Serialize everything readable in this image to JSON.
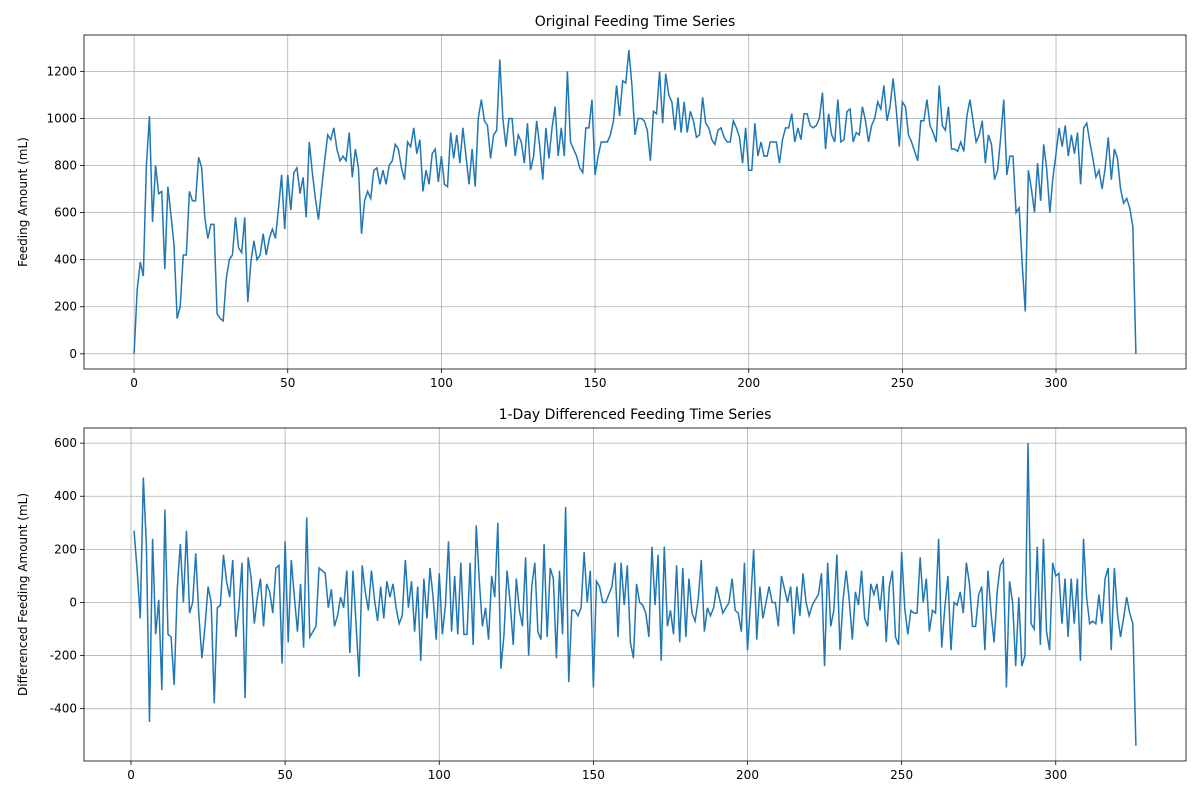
{
  "chart_data": [
    {
      "type": "line",
      "title": "Original Feeding Time Series",
      "ylabel": "Feeding Amount (mL)",
      "color": "#1f77b4",
      "grid": true,
      "xlim": [
        -16.3,
        342.3
      ],
      "ylim": [
        -64.5,
        1354.5
      ],
      "xticks": [
        0,
        50,
        100,
        150,
        200,
        250,
        300
      ],
      "yticks": [
        0,
        200,
        400,
        600,
        800,
        1000,
        1200
      ],
      "x": [
        0,
        1,
        2,
        3,
        4,
        5,
        6,
        7,
        8,
        9,
        10,
        11,
        12,
        13,
        14,
        15,
        16,
        17,
        18,
        19,
        20,
        21,
        22,
        23,
        24,
        25,
        26,
        27,
        28,
        29,
        30,
        31,
        32,
        33,
        34,
        35,
        36,
        37,
        38,
        39,
        40,
        41,
        42,
        43,
        44,
        45,
        46,
        47,
        48,
        49,
        50,
        51,
        52,
        53,
        54,
        55,
        56,
        57,
        58,
        59,
        60,
        61,
        62,
        63,
        64,
        65,
        66,
        67,
        68,
        69,
        70,
        71,
        72,
        73,
        74,
        75,
        76,
        77,
        78,
        79,
        80,
        81,
        82,
        83,
        84,
        85,
        86,
        87,
        88,
        89,
        90,
        91,
        92,
        93,
        94,
        95,
        96,
        97,
        98,
        99,
        100,
        101,
        102,
        103,
        104,
        105,
        106,
        107,
        108,
        109,
        110,
        111,
        112,
        113,
        114,
        115,
        116,
        117,
        118,
        119,
        120,
        121,
        122,
        123,
        124,
        125,
        126,
        127,
        128,
        129,
        130,
        131,
        132,
        133,
        134,
        135,
        136,
        137,
        138,
        139,
        140,
        141,
        142,
        143,
        144,
        145,
        146,
        147,
        148,
        149,
        150,
        151,
        152,
        153,
        154,
        155,
        156,
        157,
        158,
        159,
        160,
        161,
        162,
        163,
        164,
        165,
        166,
        167,
        168,
        169,
        170,
        171,
        172,
        173,
        174,
        175,
        176,
        177,
        178,
        179,
        180,
        181,
        182,
        183,
        184,
        185,
        186,
        187,
        188,
        189,
        190,
        191,
        192,
        193,
        194,
        195,
        196,
        197,
        198,
        199,
        200,
        201,
        202,
        203,
        204,
        205,
        206,
        207,
        208,
        209,
        210,
        211,
        212,
        213,
        214,
        215,
        216,
        217,
        218,
        219,
        220,
        221,
        222,
        223,
        224,
        225,
        226,
        227,
        228,
        229,
        230,
        231,
        232,
        233,
        234,
        235,
        236,
        237,
        238,
        239,
        240,
        241,
        242,
        243,
        244,
        245,
        246,
        247,
        248,
        249,
        250,
        251,
        252,
        253,
        254,
        255,
        256,
        257,
        258,
        259,
        260,
        261,
        262,
        263,
        264,
        265,
        266,
        267,
        268,
        269,
        270,
        271,
        272,
        273,
        274,
        275,
        276,
        277,
        278,
        279,
        280,
        281,
        282,
        283,
        284,
        285,
        286,
        287,
        288,
        289,
        290,
        291,
        292,
        293,
        294,
        295,
        296,
        297,
        298,
        299,
        300,
        301,
        302,
        303,
        304,
        305,
        306,
        307,
        308,
        309,
        310,
        311,
        312,
        313,
        314,
        315,
        316,
        317,
        318,
        319,
        320,
        321,
        322,
        323,
        324,
        325,
        326
      ],
      "values": [
        0,
        270,
        390,
        330,
        800,
        1010,
        560,
        800,
        680,
        690,
        360,
        710,
        590,
        460,
        150,
        200,
        420,
        420,
        690,
        650,
        650,
        835,
        790,
        580,
        490,
        550,
        550,
        170,
        150,
        140,
        320,
        400,
        420,
        580,
        450,
        430,
        580,
        220,
        390,
        480,
        400,
        420,
        510,
        420,
        490,
        530,
        490,
        620,
        760,
        530,
        760,
        610,
        770,
        790,
        680,
        750,
        580,
        900,
        770,
        660,
        570,
        700,
        820,
        930,
        910,
        960,
        870,
        820,
        840,
        820,
        940,
        750,
        870,
        790,
        510,
        650,
        690,
        660,
        780,
        790,
        720,
        780,
        720,
        800,
        820,
        890,
        870,
        790,
        740,
        900,
        880,
        960,
        850,
        910,
        690,
        780,
        720,
        850,
        870,
        730,
        840,
        720,
        710,
        940,
        830,
        930,
        810,
        960,
        840,
        720,
        870,
        710,
        1000,
        1080,
        990,
        970,
        830,
        930,
        950,
        1250,
        1000,
        880,
        1000,
        1000,
        840,
        930,
        900,
        810,
        980,
        780,
        840,
        990,
        880,
        740,
        960,
        830,
        960,
        1050,
        840,
        960,
        840,
        1200,
        900,
        870,
        840,
        790,
        770,
        960,
        960,
        1080,
        760,
        840,
        900,
        900,
        900,
        930,
        990,
        1140,
        1010,
        1160,
        1150,
        1290,
        1140,
        930,
        1000,
        1000,
        990,
        950,
        820,
        1030,
        1020,
        1200,
        980,
        1190,
        1100,
        1070,
        950,
        1090,
        940,
        1070,
        940,
        1030,
        990,
        920,
        930,
        1090,
        980,
        960,
        910,
        890,
        950,
        960,
        920,
        900,
        900,
        990,
        960,
        920,
        810,
        960,
        780,
        780,
        980,
        840,
        900,
        840,
        840,
        900,
        900,
        900,
        810,
        910,
        960,
        960,
        1020,
        900,
        960,
        910,
        1020,
        1020,
        970,
        960,
        970,
        1000,
        1110,
        870,
        1020,
        930,
        900,
        1080,
        900,
        910,
        1030,
        1040,
        900,
        940,
        930,
        1050,
        990,
        900,
        970,
        1000,
        1070,
        1040,
        1140,
        990,
        1050,
        1170,
        1040,
        880,
        1070,
        1050,
        930,
        900,
        860,
        820,
        990,
        990,
        1080,
        970,
        940,
        900,
        1140,
        970,
        950,
        1050,
        870,
        870,
        860,
        900,
        860,
        1010,
        1080,
        990,
        900,
        930,
        990,
        810,
        930,
        890,
        740,
        780,
        920,
        1080,
        760,
        840,
        840,
        600,
        620,
        380,
        180,
        780,
        700,
        600,
        810,
        650,
        890,
        780,
        600,
        750,
        850,
        960,
        880,
        970,
        840,
        930,
        850,
        940,
        720,
        960,
        980,
        900,
        830,
        750,
        780,
        700,
        790,
        920,
        740,
        870,
        830,
        700,
        640,
        660,
        620,
        540,
        0
      ]
    },
    {
      "type": "line",
      "title": "1-Day Differenced Feeding Time Series",
      "ylabel": "Differenced Feeding Amount (mL)",
      "color": "#1f77b4",
      "grid": true,
      "xlim": [
        -15.25,
        342.25
      ],
      "ylim": [
        -597,
        657
      ],
      "xticks": [
        0,
        50,
        100,
        150,
        200,
        250,
        300
      ],
      "yticks": [
        -400,
        -200,
        0,
        200,
        400,
        600
      ],
      "x": [
        1,
        2,
        3,
        4,
        5,
        6,
        7,
        8,
        9,
        10,
        11,
        12,
        13,
        14,
        15,
        16,
        17,
        18,
        19,
        20,
        21,
        22,
        23,
        24,
        25,
        26,
        27,
        28,
        29,
        30,
        31,
        32,
        33,
        34,
        35,
        36,
        37,
        38,
        39,
        40,
        41,
        42,
        43,
        44,
        45,
        46,
        47,
        48,
        49,
        50,
        51,
        52,
        53,
        54,
        55,
        56,
        57,
        58,
        59,
        60,
        61,
        62,
        63,
        64,
        65,
        66,
        67,
        68,
        69,
        70,
        71,
        72,
        73,
        74,
        75,
        76,
        77,
        78,
        79,
        80,
        81,
        82,
        83,
        84,
        85,
        86,
        87,
        88,
        89,
        90,
        91,
        92,
        93,
        94,
        95,
        96,
        97,
        98,
        99,
        100,
        101,
        102,
        103,
        104,
        105,
        106,
        107,
        108,
        109,
        110,
        111,
        112,
        113,
        114,
        115,
        116,
        117,
        118,
        119,
        120,
        121,
        122,
        123,
        124,
        125,
        126,
        127,
        128,
        129,
        130,
        131,
        132,
        133,
        134,
        135,
        136,
        137,
        138,
        139,
        140,
        141,
        142,
        143,
        144,
        145,
        146,
        147,
        148,
        149,
        150,
        151,
        152,
        153,
        154,
        155,
        156,
        157,
        158,
        159,
        160,
        161,
        162,
        163,
        164,
        165,
        166,
        167,
        168,
        169,
        170,
        171,
        172,
        173,
        174,
        175,
        176,
        177,
        178,
        179,
        180,
        181,
        182,
        183,
        184,
        185,
        186,
        187,
        188,
        189,
        190,
        191,
        192,
        193,
        194,
        195,
        196,
        197,
        198,
        199,
        200,
        201,
        202,
        203,
        204,
        205,
        206,
        207,
        208,
        209,
        210,
        211,
        212,
        213,
        214,
        215,
        216,
        217,
        218,
        219,
        220,
        221,
        222,
        223,
        224,
        225,
        226,
        227,
        228,
        229,
        230,
        231,
        232,
        233,
        234,
        235,
        236,
        237,
        238,
        239,
        240,
        241,
        242,
        243,
        244,
        245,
        246,
        247,
        248,
        249,
        250,
        251,
        252,
        253,
        254,
        255,
        256,
        257,
        258,
        259,
        260,
        261,
        262,
        263,
        264,
        265,
        266,
        267,
        268,
        269,
        270,
        271,
        272,
        273,
        274,
        275,
        276,
        277,
        278,
        279,
        280,
        281,
        282,
        283,
        284,
        285,
        286,
        287,
        288,
        289,
        290,
        291,
        292,
        293,
        294,
        295,
        296,
        297,
        298,
        299,
        300,
        301,
        302,
        303,
        304,
        305,
        306,
        307,
        308,
        309,
        310,
        311,
        312,
        313,
        314,
        315,
        316,
        317,
        318,
        319,
        320,
        321,
        322,
        323,
        324,
        325,
        326
      ],
      "values": [
        270,
        120,
        -60,
        470,
        210,
        -450,
        240,
        -120,
        10,
        -330,
        350,
        -120,
        -130,
        -310,
        50,
        220,
        0,
        270,
        -40,
        0,
        185,
        -45,
        -210,
        -90,
        60,
        0,
        -380,
        -20,
        -10,
        180,
        80,
        20,
        160,
        -130,
        -20,
        150,
        -360,
        170,
        90,
        -80,
        20,
        90,
        -90,
        70,
        40,
        -40,
        130,
        140,
        -230,
        230,
        -150,
        160,
        20,
        -110,
        70,
        -170,
        320,
        -130,
        -110,
        -90,
        130,
        120,
        110,
        -20,
        50,
        -90,
        -50,
        20,
        -20,
        120,
        -190,
        120,
        -80,
        -280,
        140,
        40,
        -30,
        120,
        10,
        -70,
        60,
        -60,
        80,
        20,
        70,
        -20,
        -80,
        -50,
        160,
        -20,
        80,
        -110,
        60,
        -220,
        90,
        -60,
        130,
        20,
        -140,
        110,
        -120,
        -10,
        230,
        -110,
        100,
        -120,
        150,
        -120,
        -120,
        150,
        -160,
        290,
        80,
        -90,
        -20,
        -140,
        100,
        20,
        300,
        -250,
        -120,
        120,
        0,
        -160,
        90,
        -30,
        -90,
        170,
        -200,
        60,
        150,
        -110,
        -140,
        220,
        -130,
        130,
        90,
        -210,
        120,
        -120,
        360,
        -300,
        -30,
        -30,
        -50,
        -20,
        190,
        0,
        120,
        -320,
        80,
        60,
        0,
        0,
        30,
        60,
        150,
        -130,
        150,
        -10,
        140,
        -150,
        -210,
        70,
        0,
        -10,
        -40,
        -130,
        210,
        -10,
        180,
        -220,
        210,
        -90,
        -30,
        -120,
        140,
        -150,
        130,
        -130,
        90,
        -40,
        -70,
        10,
        160,
        -110,
        -20,
        -50,
        -20,
        60,
        10,
        -40,
        -20,
        0,
        90,
        -30,
        -40,
        -110,
        150,
        -180,
        0,
        200,
        -140,
        60,
        -60,
        0,
        60,
        0,
        0,
        -90,
        100,
        50,
        0,
        60,
        -120,
        60,
        -50,
        110,
        0,
        -50,
        -10,
        10,
        30,
        110,
        -240,
        150,
        -90,
        -30,
        180,
        -180,
        10,
        120,
        10,
        -140,
        40,
        -10,
        120,
        -60,
        -90,
        70,
        30,
        70,
        -30,
        100,
        -150,
        60,
        120,
        -130,
        -160,
        190,
        -20,
        -120,
        -30,
        -40,
        -40,
        170,
        0,
        90,
        -110,
        -30,
        -40,
        240,
        -170,
        -20,
        100,
        -180,
        0,
        -10,
        40,
        -40,
        150,
        70,
        -90,
        -90,
        30,
        60,
        -180,
        120,
        -40,
        -150,
        40,
        140,
        160,
        -320,
        80,
        0,
        -240,
        20,
        -240,
        -200,
        600,
        -80,
        -100,
        210,
        -160,
        240,
        -110,
        -180,
        150,
        100,
        110,
        -80,
        90,
        -130,
        90,
        -80,
        90,
        -220,
        240,
        20,
        -80,
        -70,
        -80,
        30,
        -80,
        90,
        130,
        -180,
        130,
        -40,
        -130,
        -60,
        20,
        -40,
        -80,
        -540
      ]
    }
  ]
}
